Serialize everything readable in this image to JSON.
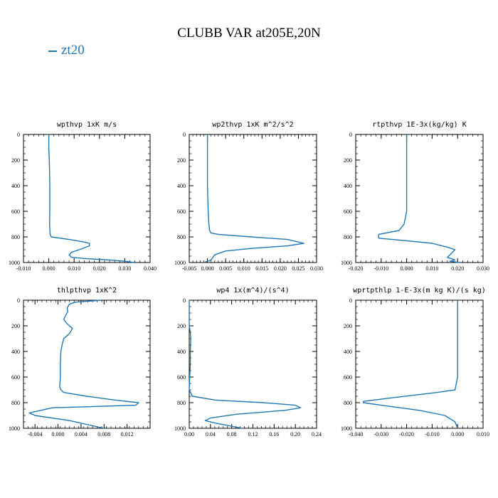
{
  "title": "CLUBB VAR at205E,20N",
  "legend": {
    "label": "zt20",
    "color": "#1f77b4"
  },
  "chart_data": [
    {
      "type": "line",
      "title": "wpthvp  1xK m/s",
      "xlim": [
        -0.01,
        0.04
      ],
      "ylim": [
        1000,
        0
      ],
      "xticks": [
        "-0.010",
        "0.000",
        "0.010",
        "0.020",
        "0.030",
        "0.040"
      ],
      "yticks": [
        "0",
        "200",
        "400",
        "600",
        "800",
        "1000"
      ],
      "series": [
        {
          "name": "zt20",
          "x": [
            0.0,
            0.0,
            0.0002,
            0.0003,
            0.0004,
            0.0004,
            0.0004,
            0.0003,
            0.0005,
            0.001,
            0.008,
            0.014,
            0.016,
            0.016,
            0.012,
            0.009,
            0.008,
            0.009,
            0.015,
            0.024,
            0.03,
            0.034
          ],
          "y": [
            0,
            100,
            200,
            300,
            400,
            500,
            600,
            700,
            780,
            800,
            820,
            840,
            850,
            870,
            900,
            920,
            940,
            960,
            970,
            980,
            990,
            1000
          ]
        }
      ]
    },
    {
      "type": "line",
      "title": "wp2thvp  1xK m^2/s^2",
      "xlim": [
        -0.005,
        0.03
      ],
      "ylim": [
        1000,
        0
      ],
      "xticks": [
        "-0.005",
        "0.000",
        "0.005",
        "0.010",
        "0.015",
        "0.020",
        "0.025",
        "0.030"
      ],
      "yticks": [
        "0",
        "200",
        "400",
        "600",
        "800",
        "1000"
      ],
      "series": [
        {
          "name": "zt20",
          "x": [
            0.0,
            0.0,
            0.0,
            0.0002,
            0.0004,
            0.0006,
            0.001,
            0.003,
            0.012,
            0.022,
            0.0265,
            0.022,
            0.012,
            0.005,
            0.002,
            0.001,
            -0.001
          ],
          "y": [
            0,
            200,
            400,
            600,
            700,
            750,
            770,
            780,
            800,
            820,
            850,
            870,
            890,
            910,
            940,
            980,
            1000
          ]
        }
      ]
    },
    {
      "type": "line",
      "title": "rtpthvp  1E-3x(kg/kg) K",
      "xlim": [
        -0.02,
        0.03
      ],
      "ylim": [
        1000,
        0
      ],
      "xticks": [
        "-0.020",
        "-0.010",
        "0.000",
        "0.010",
        "0.020",
        "0.030"
      ],
      "yticks": [
        "0",
        "200",
        "400",
        "600",
        "800",
        "1000"
      ],
      "series": [
        {
          "name": "zt20",
          "x": [
            0.0,
            0.0,
            0.0,
            0.0,
            -0.001,
            -0.003,
            -0.011,
            -0.011,
            0.0,
            0.01,
            0.016,
            0.019,
            0.017,
            0.016,
            0.019,
            0.017,
            0.021
          ],
          "y": [
            0,
            200,
            400,
            600,
            700,
            750,
            780,
            810,
            830,
            850,
            880,
            900,
            940,
            960,
            980,
            990,
            1000
          ]
        }
      ]
    },
    {
      "type": "line",
      "title": "thlpthvp  1xK^2",
      "xlim": [
        -0.006,
        0.016
      ],
      "ylim": [
        1000,
        0
      ],
      "xticks": [
        "-0.004",
        "0.000",
        "0.004",
        "0.008",
        "0.012"
      ],
      "yticks": [
        "0",
        "200",
        "400",
        "600",
        "800",
        "1000"
      ],
      "series": [
        {
          "name": "zt20",
          "x": [
            0.0075,
            0.003,
            0.002,
            0.0016,
            0.0017,
            0.0013,
            0.001,
            0.0015,
            0.0025,
            0.002,
            0.001,
            0.0007,
            0.0005,
            0.0004,
            0.0004,
            0.0003,
            0.0005,
            0.001,
            0.005,
            0.01,
            0.014,
            0.0135,
            -0.001,
            -0.005,
            -0.004,
            0.002,
            0.008
          ],
          "y": [
            0,
            15,
            30,
            60,
            90,
            120,
            150,
            180,
            220,
            260,
            300,
            350,
            400,
            500,
            600,
            680,
            700,
            720,
            750,
            780,
            800,
            820,
            840,
            880,
            900,
            940,
            1000
          ]
        }
      ]
    },
    {
      "type": "line",
      "title": "wp4  1x(m^4)/(s^4)",
      "xlim": [
        0,
        0.24
      ],
      "ylim": [
        1000,
        0
      ],
      "xticks": [
        "0.00",
        "0.04",
        "0.08",
        "0.12",
        "0.16",
        "0.20",
        "0.24"
      ],
      "yticks": [
        "0",
        "200",
        "400",
        "600",
        "800",
        "1000"
      ],
      "series": [
        {
          "name": "zt20",
          "x": [
            0.0,
            0.0,
            0.002,
            0.003,
            0.002,
            0.002,
            0.001,
            0.0,
            0.006,
            0.05,
            0.14,
            0.2,
            0.21,
            0.18,
            0.09,
            0.04,
            0.03,
            0.05,
            0.1
          ],
          "y": [
            0,
            200,
            250,
            300,
            400,
            500,
            600,
            700,
            750,
            780,
            800,
            820,
            840,
            860,
            890,
            920,
            940,
            960,
            1000
          ]
        }
      ]
    },
    {
      "type": "line",
      "title": "wprtpthlp  1-E-3x(m kg K)/(s kg)",
      "xlim": [
        -0.04,
        0.01
      ],
      "ylim": [
        1000,
        0
      ],
      "xticks": [
        "-0.040",
        "-0.030",
        "-0.020",
        "-0.010",
        "0.000",
        "0.010"
      ],
      "yticks": [
        "0",
        "200",
        "400",
        "600",
        "800",
        "1000"
      ],
      "series": [
        {
          "name": "zt20",
          "x": [
            0.0,
            0.0,
            0.0,
            0.0,
            -0.001,
            -0.008,
            -0.025,
            -0.037,
            -0.037,
            -0.03,
            -0.015,
            -0.005,
            -0.001,
            0.0
          ],
          "y": [
            0,
            200,
            400,
            600,
            700,
            720,
            760,
            790,
            800,
            820,
            860,
            900,
            950,
            1000
          ]
        }
      ]
    }
  ]
}
